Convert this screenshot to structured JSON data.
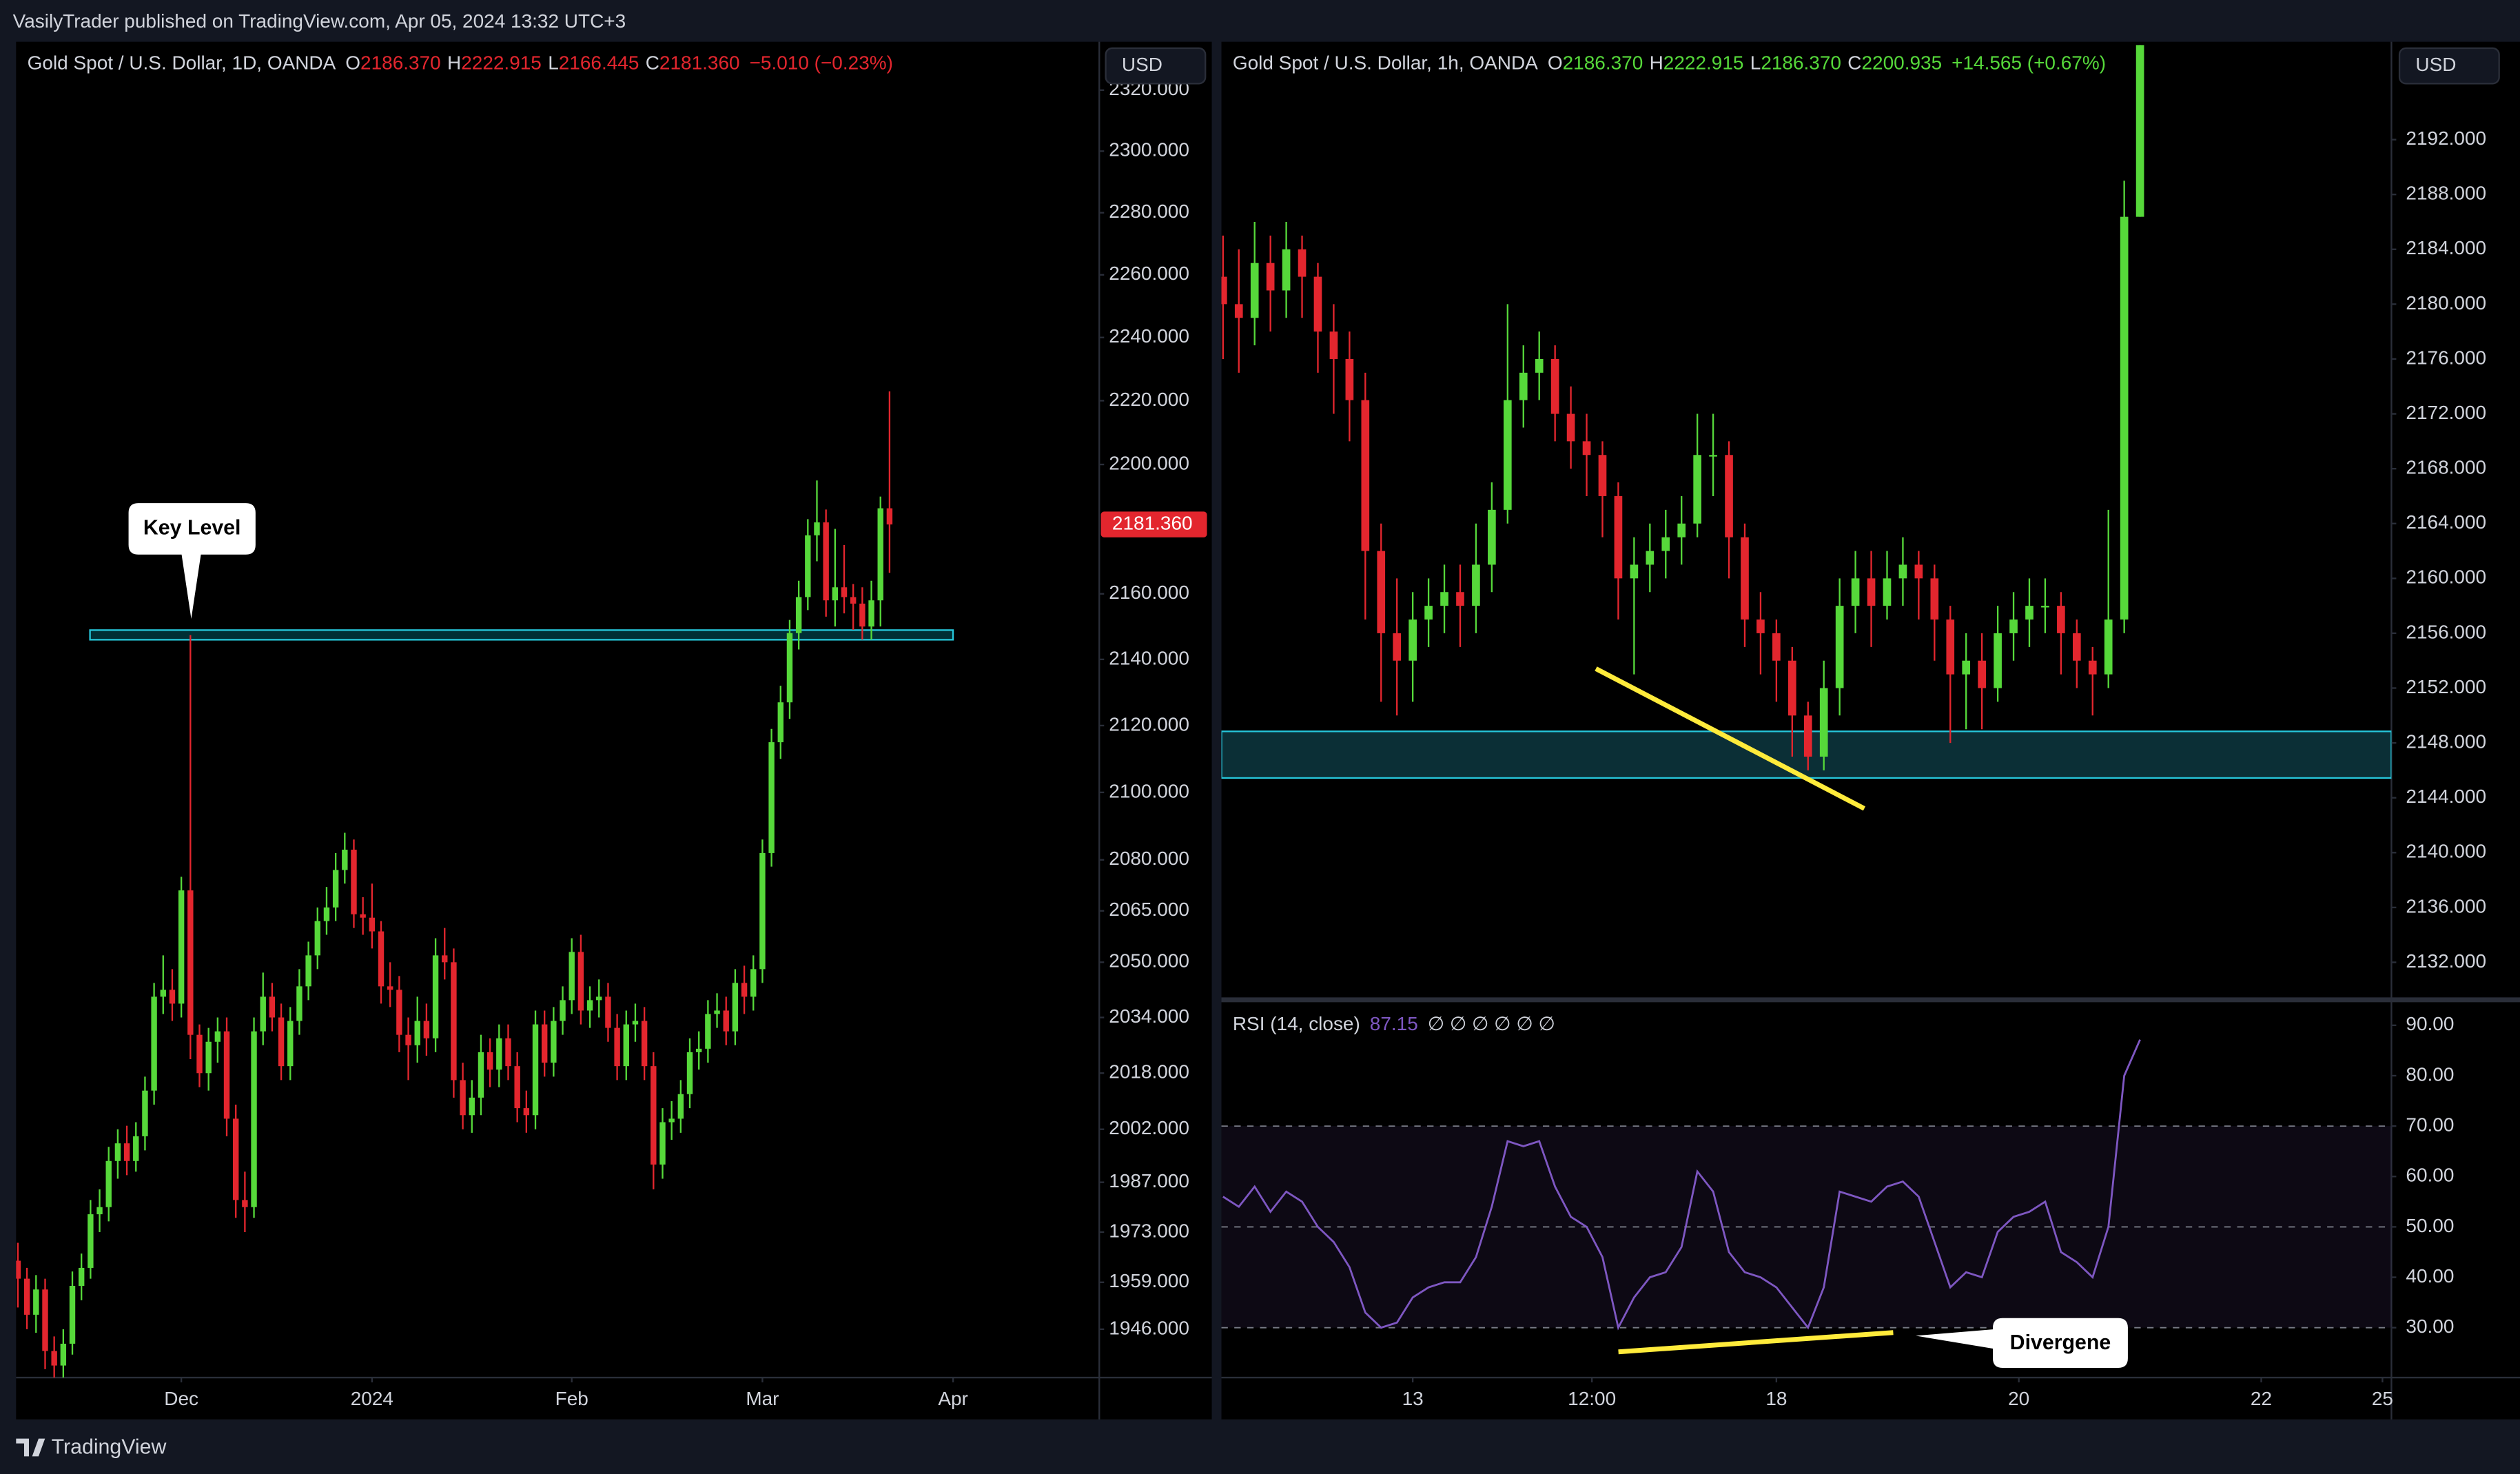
{
  "header": "VasilyTrader published on TradingView.com, Apr 05, 2024 13:32 UTC+3",
  "footer": "TradingView",
  "currency": "USD",
  "annotations": {
    "key_level": "Key Level",
    "divergence": "Divergene"
  },
  "chart_data": [
    {
      "type": "candlestick",
      "title": "Gold Spot / U.S. Dollar, 1D, OANDA",
      "legend_letters": [
        "O",
        "H",
        "L",
        "C"
      ],
      "ohlc_labels": [
        "2186.370",
        "2222.915",
        "2166.445",
        "2181.360"
      ],
      "change": "−5.010 (−0.23%)",
      "up_color": "#56d83a",
      "down_color": "#e3262e",
      "log_scale": true,
      "grid": false,
      "x": [
        -18,
        -17,
        -16,
        -15,
        -14,
        -13,
        -12,
        -11,
        -10,
        -9,
        -8,
        -7,
        -6,
        -5,
        -4,
        -3,
        -2,
        -1,
        0,
        1,
        2,
        3,
        4,
        5,
        6,
        7,
        8,
        9,
        10,
        11,
        12,
        13,
        14,
        15,
        16,
        17,
        18,
        19,
        20,
        21,
        22,
        23,
        24,
        25,
        26,
        27,
        28,
        29,
        30,
        31,
        32,
        33,
        34,
        35,
        36,
        37,
        38,
        39,
        40,
        41,
        42,
        43,
        44,
        45,
        46,
        47,
        48,
        49,
        50,
        51,
        52,
        53,
        54,
        55,
        56,
        57,
        58,
        59,
        60,
        61,
        62,
        63,
        64,
        65,
        66,
        67,
        68,
        69,
        70,
        71,
        72,
        73,
        74,
        75,
        76,
        77,
        78
      ],
      "open": [
        1965,
        1960,
        1950,
        1957,
        1940,
        1936,
        1942,
        1958,
        1963,
        1978,
        1980,
        1993,
        1998,
        1993,
        2000,
        2013,
        2040,
        2042,
        2038,
        2071,
        2029,
        2018,
        2027,
        2030,
        2005,
        1982,
        1980,
        2030,
        2040,
        2034,
        2020,
        2033,
        2043,
        2052,
        2062,
        2066,
        2077,
        2083,
        2064,
        2063,
        2059,
        2043,
        2042,
        2029,
        2026,
        2033,
        2028,
        2052,
        2050,
        2016,
        2006,
        2011,
        2024,
        2019,
        2028,
        2020,
        2008,
        2006,
        2032,
        2021,
        2033,
        2039,
        2053,
        2036,
        2039,
        2040,
        2031,
        2020,
        2032,
        2033,
        2020,
        1992,
        2004,
        2005,
        2012,
        2024,
        2025,
        2035,
        2036,
        2030,
        2044,
        2040,
        2048,
        2082,
        2115,
        2127,
        2148,
        2159,
        2178,
        2182,
        2158,
        2162,
        2159,
        2157,
        2150,
        2158,
        2186.37
      ],
      "high": [
        1970,
        1963,
        1961,
        1960,
        1944,
        1946,
        1962,
        1967,
        1982,
        1985,
        1997,
        2002,
        2003,
        2004,
        2017,
        2044,
        2052,
        2048,
        2075,
        2147.4,
        2032,
        2031,
        2034,
        2034,
        2009,
        1990,
        2034,
        2047,
        2044,
        2038,
        2037,
        2048,
        2056,
        2066,
        2072,
        2082,
        2088,
        2086,
        2069,
        2073,
        2062,
        2050,
        2046,
        2034,
        2040,
        2038,
        2057,
        2060,
        2054,
        2021,
        2016,
        2029,
        2028,
        2032,
        2032,
        2024,
        2013,
        2036,
        2036,
        2037,
        2043,
        2057,
        2058,
        2043,
        2045,
        2044,
        2035,
        2036,
        2038,
        2037,
        2024,
        2008,
        2010,
        2016,
        2028,
        2030,
        2039,
        2041,
        2040,
        2048,
        2049,
        2052,
        2086,
        2119,
        2132,
        2152,
        2164,
        2183,
        2195,
        2186,
        2180,
        2175,
        2163,
        2162,
        2164,
        2190,
        2222.915
      ],
      "low": [
        1952,
        1946,
        1945,
        1935,
        1931,
        1932,
        1939,
        1954,
        1960,
        1973,
        1976,
        1988,
        1989,
        1990,
        1996,
        2009,
        2035,
        2033,
        2034,
        2022,
        2014,
        2013,
        2021,
        2000,
        1977,
        1973,
        1977,
        2026,
        2030,
        2016,
        2016,
        2029,
        2039,
        2048,
        2058,
        2062,
        2073,
        2060,
        2058,
        2054,
        2038,
        2037,
        2024,
        2016,
        2021,
        2023,
        2024,
        2045,
        2011,
        2002,
        2001,
        2006,
        2014,
        2014,
        2016,
        2004,
        2001,
        2002,
        2017,
        2017,
        2029,
        2035,
        2032,
        2031,
        2034,
        2027,
        2016,
        2016,
        2027,
        2016,
        1985,
        1988,
        1999,
        2001,
        2008,
        2019,
        2021,
        2031,
        2026,
        2026,
        2035,
        2036,
        2044,
        2078,
        2110,
        2122,
        2143,
        2155,
        2170,
        2153,
        2150,
        2154,
        2149,
        2146,
        2146,
        2150,
        2166.445
      ],
      "close": [
        1960,
        1950,
        1957,
        1940,
        1936,
        1942,
        1958,
        1963,
        1978,
        1980,
        1993,
        1998,
        1993,
        2000,
        2013,
        2040,
        2042,
        2038,
        2071,
        2029,
        2018,
        2027,
        2030,
        2005,
        1982,
        1980,
        2030,
        2040,
        2034,
        2020,
        2033,
        2043,
        2052,
        2062,
        2066,
        2077,
        2083,
        2064,
        2063,
        2059,
        2043,
        2042,
        2029,
        2026,
        2033,
        2028,
        2052,
        2050,
        2016,
        2006,
        2011,
        2024,
        2019,
        2028,
        2020,
        2008,
        2006,
        2032,
        2021,
        2033,
        2039,
        2053,
        2036,
        2039,
        2040,
        2031,
        2020,
        2032,
        2033,
        2020,
        1992,
        2004,
        2005,
        2012,
        2024,
        2025,
        2035,
        2036,
        2030,
        2044,
        2040,
        2048,
        2082,
        2115,
        2127,
        2148,
        2159,
        2178,
        2182,
        2158,
        2162,
        2159,
        2157,
        2150,
        2158,
        2186.37,
        2181.36
      ],
      "xlim": [
        -18.2,
        101.1
      ],
      "xticks": [
        {
          "value": 0,
          "label": "Dec"
        },
        {
          "value": 21,
          "label": "2024"
        },
        {
          "value": 43,
          "label": "Feb"
        },
        {
          "value": 64,
          "label": "Mar"
        },
        {
          "value": 85,
          "label": "Apr"
        }
      ],
      "ylim": [
        1932.7,
        2334.9
      ],
      "yticks": [
        {
          "value": 2320,
          "label": "2320.000"
        },
        {
          "value": 2300,
          "label": "2300.000"
        },
        {
          "value": 2280,
          "label": "2280.000"
        },
        {
          "value": 2260,
          "label": "2260.000"
        },
        {
          "value": 2240,
          "label": "2240.000"
        },
        {
          "value": 2220,
          "label": "2220.000"
        },
        {
          "value": 2200,
          "label": "2200.000"
        },
        {
          "value": 2160,
          "label": "2160.000"
        },
        {
          "value": 2140,
          "label": "2140.000"
        },
        {
          "value": 2120,
          "label": "2120.000"
        },
        {
          "value": 2100,
          "label": "2100.000"
        },
        {
          "value": 2080,
          "label": "2080.000"
        },
        {
          "value": 2065,
          "label": "2065.000"
        },
        {
          "value": 2050,
          "label": "2050.000"
        },
        {
          "value": 2034,
          "label": "2034.000"
        },
        {
          "value": 2018,
          "label": "2018.000"
        },
        {
          "value": 2002,
          "label": "2002.000"
        },
        {
          "value": 1987,
          "label": "1987.000"
        },
        {
          "value": 1973,
          "label": "1973.000"
        },
        {
          "value": 1959,
          "label": "1959.000"
        },
        {
          "value": 1946,
          "label": "1946.000"
        }
      ]
    },
    {
      "type": "candlestick",
      "title": "Gold Spot / U.S. Dollar, 1h, OANDA",
      "legend_letters": [
        "O",
        "H",
        "L",
        "C"
      ],
      "ohlc_labels": [
        "2186.370",
        "2222.915",
        "2186.370",
        "2200.935"
      ],
      "change": "+14.565 (+0.67%)",
      "up_color": "#56d83a",
      "down_color": "#e3262e",
      "log_scale": false,
      "grid": false,
      "x": [
        -36,
        -33,
        -30,
        -27,
        -24,
        -21,
        -18,
        -15,
        -12,
        -9,
        -6,
        -3,
        0,
        3,
        6,
        9,
        12,
        15,
        18,
        21,
        24,
        27,
        30,
        33,
        36,
        39,
        42,
        45,
        48,
        51,
        54,
        57,
        60,
        63,
        66,
        69,
        72,
        75,
        78,
        81,
        84,
        87,
        90,
        93,
        96,
        99,
        102,
        105,
        108,
        111,
        114,
        117,
        120,
        123,
        126,
        129,
        132,
        135,
        138
      ],
      "open": [
        2182,
        2180,
        2179,
        2183,
        2181,
        2184,
        2182,
        2178,
        2176,
        2173,
        2162,
        2156,
        2154,
        2157,
        2158,
        2159,
        2158,
        2161,
        2165,
        2173,
        2175,
        2176,
        2172,
        2170,
        2169,
        2166,
        2160,
        2161,
        2162,
        2163,
        2164,
        2169,
        2169,
        2163,
        2157,
        2156,
        2154,
        2150,
        2147,
        2152,
        2158,
        2160,
        2158,
        2160,
        2161,
        2160,
        2157,
        2153,
        2154,
        2152,
        2156,
        2157,
        2158,
        2158,
        2156,
        2154,
        2153,
        2157,
        2186.37
      ],
      "high": [
        2185,
        2184,
        2186,
        2185,
        2186,
        2185,
        2183,
        2180,
        2178,
        2175,
        2164,
        2160,
        2159,
        2160,
        2161,
        2161,
        2164,
        2167,
        2180,
        2177,
        2178,
        2177,
        2174,
        2172,
        2170,
        2167,
        2163,
        2164,
        2165,
        2166,
        2172,
        2172,
        2170,
        2164,
        2159,
        2157,
        2155,
        2151,
        2154,
        2160,
        2162,
        2162,
        2162,
        2163,
        2162,
        2161,
        2158,
        2156,
        2156,
        2158,
        2159,
        2160,
        2160,
        2159,
        2157,
        2155,
        2165,
        2189,
        2222.915
      ],
      "low": [
        2176,
        2175,
        2177,
        2178,
        2179,
        2179,
        2175,
        2172,
        2170,
        2157,
        2151,
        2150,
        2151,
        2155,
        2156,
        2155,
        2156,
        2159,
        2164,
        2171,
        2173,
        2170,
        2168,
        2166,
        2163,
        2157,
        2153,
        2159,
        2160,
        2161,
        2163,
        2166,
        2160,
        2155,
        2153,
        2151,
        2147,
        2146,
        2146,
        2150,
        2156,
        2155,
        2157,
        2158,
        2157,
        2154,
        2148,
        2149,
        2149,
        2151,
        2154,
        2155,
        2156,
        2153,
        2152,
        2150,
        2152,
        2156,
        2186.37
      ],
      "close": [
        2180,
        2179,
        2183,
        2181,
        2184,
        2182,
        2178,
        2176,
        2173,
        2162,
        2156,
        2154,
        2157,
        2158,
        2159,
        2158,
        2161,
        2165,
        2173,
        2175,
        2176,
        2172,
        2170,
        2169,
        2166,
        2160,
        2161,
        2162,
        2163,
        2164,
        2169,
        2169,
        2163,
        2157,
        2156,
        2154,
        2150,
        2147,
        2152,
        2158,
        2160,
        2158,
        2160,
        2161,
        2160,
        2157,
        2153,
        2154,
        2152,
        2156,
        2157,
        2158,
        2158,
        2156,
        2154,
        2153,
        2157,
        2186.37,
        2200.935
      ],
      "xlim": [
        -36.3,
        185.7
      ],
      "xticks": [
        {
          "value": 0,
          "label": "13"
        },
        {
          "value": 34,
          "label": "12:00"
        },
        {
          "value": 69,
          "label": "18"
        },
        {
          "value": 115,
          "label": "20"
        },
        {
          "value": 161,
          "label": "22"
        },
        {
          "value": 184,
          "label": "25"
        }
      ],
      "ylim": [
        2129.5,
        2198.9
      ],
      "yticks": [
        {
          "value": 2192,
          "label": "2192.000"
        },
        {
          "value": 2188,
          "label": "2188.000"
        },
        {
          "value": 2184,
          "label": "2184.000"
        },
        {
          "value": 2180,
          "label": "2180.000"
        },
        {
          "value": 2176,
          "label": "2176.000"
        },
        {
          "value": 2172,
          "label": "2172.000"
        },
        {
          "value": 2168,
          "label": "2168.000"
        },
        {
          "value": 2164,
          "label": "2164.000"
        },
        {
          "value": 2160,
          "label": "2160.000"
        },
        {
          "value": 2156,
          "label": "2156.000"
        },
        {
          "value": 2152,
          "label": "2152.000"
        },
        {
          "value": 2148,
          "label": "2148.000"
        },
        {
          "value": 2144,
          "label": "2144.000"
        },
        {
          "value": 2140,
          "label": "2140.000"
        },
        {
          "value": 2136,
          "label": "2136.000"
        },
        {
          "value": 2132,
          "label": "2132.000"
        }
      ],
      "rsi": {
        "title": "RSI (14, close)",
        "icons": "∅ ∅ ∅ ∅ ∅ ∅",
        "color": "#7e57c2",
        "values": [
          56,
          54,
          58,
          53,
          57,
          55,
          50,
          47,
          42,
          33,
          30,
          31,
          36,
          38,
          39,
          39,
          44,
          54,
          67,
          66,
          67,
          58,
          52,
          50,
          44,
          30,
          36,
          40,
          41,
          46,
          61,
          57,
          45,
          41,
          40,
          38,
          34,
          30,
          38,
          57,
          56,
          55,
          58,
          59,
          56,
          47,
          38,
          41,
          40,
          49,
          52,
          53,
          55,
          45,
          43,
          40,
          50,
          80,
          87.15
        ],
        "ylim": [
          20.1,
          94.1
        ],
        "yticks": [
          {
            "value": 90,
            "label": "90.00"
          },
          {
            "value": 80,
            "label": "80.00"
          },
          {
            "value": 70,
            "label": "70.00"
          },
          {
            "value": 60,
            "label": "60.00"
          },
          {
            "value": 50,
            "label": "50.00"
          },
          {
            "value": 40,
            "label": "40.00"
          },
          {
            "value": 30,
            "label": "30.00"
          }
        ],
        "levels": [
          30,
          50,
          70
        ]
      }
    }
  ]
}
